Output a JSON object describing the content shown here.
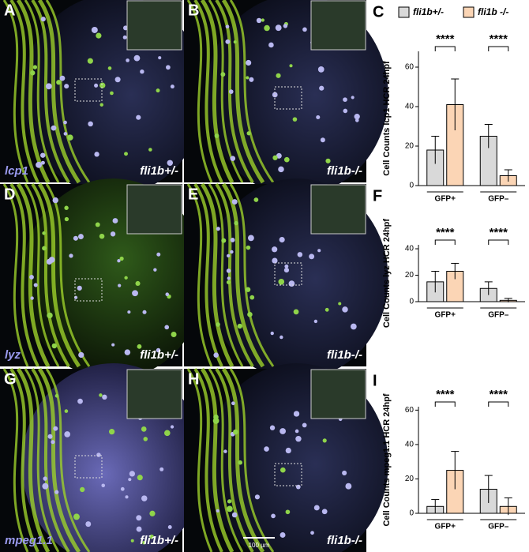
{
  "panels": [
    {
      "letter": "A",
      "gene": "lcp1",
      "genotype": "fli1b+/-"
    },
    {
      "letter": "B",
      "genotype": "fli1b-/-"
    },
    {
      "letter": "D",
      "gene": "lyz",
      "genotype": "fli1b+/-"
    },
    {
      "letter": "E",
      "genotype": "fli1b-/-"
    },
    {
      "letter": "G",
      "gene": "mpeg1.1",
      "genotype": "fli1b+/-"
    },
    {
      "letter": "H",
      "genotype": "fli1b-/-",
      "scale_bar": "100 µm"
    }
  ],
  "chart_data": [
    {
      "type": "bar",
      "panel": "C",
      "ylabel": "Cell Counts lcp1 HCR 24hpf",
      "categories": [
        "GFP+",
        "GFP–"
      ],
      "series": [
        {
          "name": "fli1b+/-",
          "color": "#d9d9d9",
          "values": [
            18,
            25
          ],
          "errors": [
            7,
            6
          ]
        },
        {
          "name": "fli1b -/-",
          "color": "#fbd5b5",
          "values": [
            41,
            5
          ],
          "errors": [
            13,
            3
          ]
        }
      ],
      "significance": [
        "****",
        "****"
      ],
      "ylim": [
        0,
        68
      ],
      "yticks": [
        0,
        20,
        40,
        60
      ],
      "legend": "top"
    },
    {
      "type": "bar",
      "panel": "F",
      "ylabel": "Cell Counts lyz HCR 24hpf",
      "categories": [
        "GFP+",
        "GFP–"
      ],
      "series": [
        {
          "color": "#d9d9d9",
          "values": [
            15,
            10
          ],
          "errors": [
            8,
            5
          ]
        },
        {
          "color": "#fbd5b5",
          "values": [
            23,
            1
          ],
          "errors": [
            6,
            1.5
          ]
        }
      ],
      "significance": [
        "****",
        "****"
      ],
      "ylim": [
        0,
        43
      ],
      "yticks": [
        0,
        20,
        40
      ]
    },
    {
      "type": "bar",
      "panel": "I",
      "ylabel": "Cell Counts mpeg1.1 HCR 24hpf",
      "categories": [
        "GFP+",
        "GFP–"
      ],
      "series": [
        {
          "color": "#d9d9d9",
          "values": [
            4,
            14
          ],
          "errors": [
            4,
            8
          ]
        },
        {
          "color": "#fbd5b5",
          "values": [
            25,
            4
          ],
          "errors": [
            11,
            5
          ]
        }
      ],
      "significance": [
        "****",
        "****"
      ],
      "ylim": [
        0,
        62
      ],
      "yticks": [
        0,
        20,
        40,
        60
      ]
    }
  ]
}
